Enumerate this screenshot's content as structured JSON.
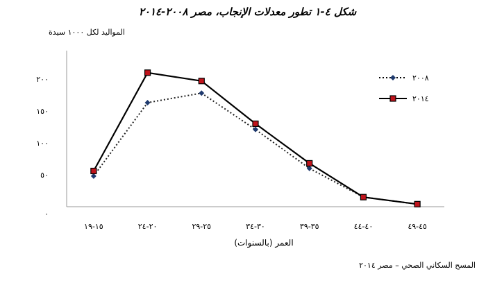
{
  "chart_data": {
    "type": "line",
    "title": "شكل ٤-١ تطور معدلات الإنجاب، مصر ٢٠٠٨-٢٠١٤",
    "ylabel": "المواليد لكل ١٠٠٠ سيدة",
    "xlabel": "العمر (بالسنوات)",
    "categories": [
      "15-19",
      "20-24",
      "25-29",
      "30-34",
      "35-39",
      "40-44",
      "45-49"
    ],
    "category_labels": [
      "١٥-١٩",
      "٢٠-٢٤",
      "٢٥-٢٩",
      "٣٠-٣٤",
      "٣٥-٣٩",
      "٤٠-٤٤",
      "٤٥-٤٩"
    ],
    "y_ticks": [
      0,
      50,
      100,
      150,
      200
    ],
    "y_tick_labels": [
      "٠",
      "٥٠",
      "١٠٠",
      "١٥٠",
      "٢٠٠"
    ],
    "ylim": [
      0,
      200
    ],
    "series": [
      {
        "name": "٢٠٠٨",
        "values": [
          48,
          163,
          178,
          121,
          60,
          15,
          4
        ],
        "style": "dotted",
        "marker": "diamond",
        "color": "#1f3a6e"
      },
      {
        "name": "٢٠١٤",
        "values": [
          56,
          210,
          197,
          130,
          68,
          15,
          4
        ],
        "style": "solid",
        "marker": "square",
        "color": "#000000",
        "marker_fill": "#c0141c"
      }
    ],
    "legend_position": "top-right",
    "grid": false
  },
  "source": "المسح السكاني الصحي – مصر ٢٠١٤"
}
